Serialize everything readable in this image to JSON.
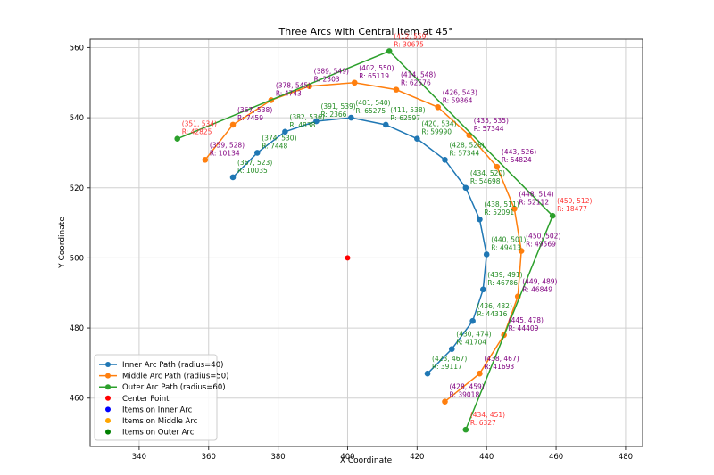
{
  "chart_data": {
    "type": "line",
    "title": "Three Arcs with Central Item at 45°",
    "xlabel": "X Coordinate",
    "ylabel": "Y Coordinate",
    "xlim": [
      325.9,
      484.9
    ],
    "ylim": [
      446.2,
      562.4
    ],
    "xticks": [
      340,
      360,
      380,
      400,
      420,
      440,
      460,
      480
    ],
    "yticks": [
      460,
      480,
      500,
      520,
      540,
      560
    ],
    "grid": true,
    "legend_placement": "lower-left",
    "center": {
      "x": 400,
      "y": 500,
      "color": "#ff0000",
      "label": "Center Point"
    },
    "series": [
      {
        "name": "Inner Arc Path (radius=40)",
        "color": "#1f77b4",
        "label_color": "#228b22",
        "points": [
          {
            "x": 367,
            "y": 523,
            "label": "(367, 523)",
            "r": "R: 10035"
          },
          {
            "x": 374,
            "y": 530,
            "label": "(374, 530)",
            "r": "R: 7448"
          },
          {
            "x": 382,
            "y": 536,
            "label": "(382, 536)",
            "r": "R: 4838"
          },
          {
            "x": 391,
            "y": 539,
            "label": "(391, 539)",
            "r": "R: 2366"
          },
          {
            "x": 401,
            "y": 540,
            "label": "(401, 540)",
            "r": "R: 65275"
          },
          {
            "x": 411,
            "y": 538,
            "label": "(411, 538)",
            "r": "R: 62597"
          },
          {
            "x": 420,
            "y": 534,
            "label": "(420, 534)",
            "r": "R: 59990"
          },
          {
            "x": 428,
            "y": 528,
            "label": "(428, 528)",
            "r": "R: 57344"
          },
          {
            "x": 434,
            "y": 520,
            "label": "(434, 520)",
            "r": "R: 54698"
          },
          {
            "x": 438,
            "y": 511,
            "label": "(438, 511)",
            "r": "R: 52091"
          },
          {
            "x": 440,
            "y": 501,
            "label": "(440, 501)",
            "r": "R: 49413"
          },
          {
            "x": 439,
            "y": 491,
            "label": "(439, 491)",
            "r": "R: 46786"
          },
          {
            "x": 436,
            "y": 482,
            "label": "(436, 482)",
            "r": "R: 44316"
          },
          {
            "x": 430,
            "y": 474,
            "label": "(430, 474)",
            "r": "R: 41704"
          },
          {
            "x": 423,
            "y": 467,
            "label": "(423, 467)",
            "r": "R: 39117"
          }
        ]
      },
      {
        "name": "Middle Arc Path (radius=50)",
        "color": "#ff7f0e",
        "label_color": "#800080",
        "points": [
          {
            "x": 359,
            "y": 528,
            "label": "(359, 528)",
            "r": "R: 10134"
          },
          {
            "x": 367,
            "y": 538,
            "label": "(367, 538)",
            "r": "R: 7459"
          },
          {
            "x": 378,
            "y": 545,
            "label": "(378, 545)",
            "r": "R: 4743"
          },
          {
            "x": 389,
            "y": 549,
            "label": "(389, 549)",
            "r": "R: 2303"
          },
          {
            "x": 402,
            "y": 550,
            "label": "(402, 550)",
            "r": "R: 65119"
          },
          {
            "x": 414,
            "y": 548,
            "label": "(414, 548)",
            "r": "R: 62576"
          },
          {
            "x": 426,
            "y": 543,
            "label": "(426, 543)",
            "r": "R: 59864"
          },
          {
            "x": 435,
            "y": 535,
            "label": "(435, 535)",
            "r": "R: 57344"
          },
          {
            "x": 443,
            "y": 526,
            "label": "(443, 526)",
            "r": "R: 54824"
          },
          {
            "x": 448,
            "y": 514,
            "label": "(448, 514)",
            "r": "R: 52112"
          },
          {
            "x": 450,
            "y": 502,
            "label": "(450, 502)",
            "r": "R: 49569"
          },
          {
            "x": 449,
            "y": 489,
            "label": "(449, 489)",
            "r": "R: 46849"
          },
          {
            "x": 445,
            "y": 478,
            "label": "(445, 478)",
            "r": "R: 44409"
          },
          {
            "x": 438,
            "y": 467,
            "label": "(438, 467)",
            "r": "R: 41693"
          },
          {
            "x": 428,
            "y": 459,
            "label": "(428, 459)",
            "r": "R: 39018"
          }
        ]
      },
      {
        "name": "Outer Arc Path (radius=60)",
        "color": "#2ca02c",
        "label_color": "#ff3333",
        "points": [
          {
            "x": 351,
            "y": 534,
            "label": "(351, 534)",
            "r": "R: 42825"
          },
          {
            "x": 412,
            "y": 559,
            "label": "(412, 559)",
            "r": "R: 30675"
          },
          {
            "x": 459,
            "y": 512,
            "label": "(459, 512)",
            "r": "R: 18477"
          },
          {
            "x": 434,
            "y": 451,
            "label": "(434, 451)",
            "r": "R: 6327"
          }
        ]
      }
    ],
    "legend": [
      {
        "label": "Inner Arc Path (radius=40)",
        "color": "#1f77b4",
        "kind": "line"
      },
      {
        "label": "Middle Arc Path (radius=50)",
        "color": "#ff7f0e",
        "kind": "line"
      },
      {
        "label": "Outer Arc Path (radius=60)",
        "color": "#2ca02c",
        "kind": "line"
      },
      {
        "label": "Center Point",
        "color": "#ff0000",
        "kind": "dot"
      },
      {
        "label": "Items on Inner Arc",
        "color": "#0000ff",
        "kind": "dot"
      },
      {
        "label": "Items on Middle Arc",
        "color": "#ffa500",
        "kind": "dot"
      },
      {
        "label": "Items on Outer Arc",
        "color": "#008000",
        "kind": "dot"
      }
    ]
  }
}
